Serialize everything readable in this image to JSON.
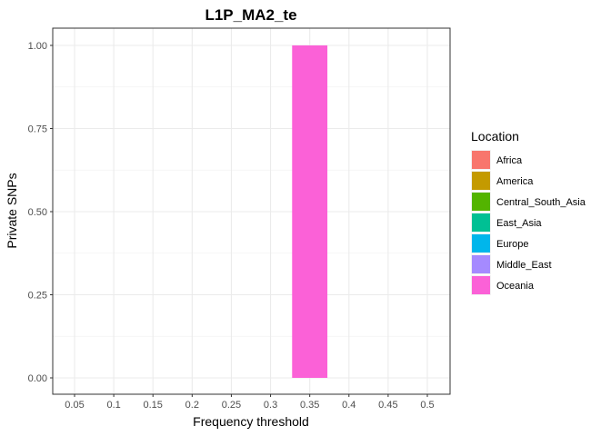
{
  "chart_data": {
    "type": "bar",
    "title": "L1P_MA2_te",
    "xlabel": "Frequency threshold",
    "ylabel": "Private SNPs",
    "categories": [
      "0.05",
      "0.1",
      "0.15",
      "0.2",
      "0.25",
      "0.3",
      "0.35",
      "0.4",
      "0.45",
      "0.5"
    ],
    "ylim": [
      0,
      1
    ],
    "yticks": [
      "0.00",
      "0.25",
      "0.50",
      "0.75",
      "1.00"
    ],
    "grid": true,
    "stacked": true,
    "legend": {
      "title": "Location",
      "placement": "right"
    },
    "series": [
      {
        "name": "Africa",
        "color": "#F8766D",
        "values": [
          0,
          0,
          0,
          0,
          0,
          0,
          0,
          0,
          0,
          0
        ]
      },
      {
        "name": "America",
        "color": "#C49A00",
        "values": [
          0,
          0,
          0,
          0,
          0,
          0,
          0,
          0,
          0,
          0
        ]
      },
      {
        "name": "Central_South_Asia",
        "color": "#53B400",
        "values": [
          0,
          0,
          0,
          0,
          0,
          0,
          0,
          0,
          0,
          0
        ]
      },
      {
        "name": "East_Asia",
        "color": "#00C094",
        "values": [
          0,
          0,
          0,
          0,
          0,
          0,
          0,
          0,
          0,
          0
        ]
      },
      {
        "name": "Europe",
        "color": "#00B6EB",
        "values": [
          0,
          0,
          0,
          0,
          0,
          0,
          0,
          0,
          0,
          0
        ]
      },
      {
        "name": "Middle_East",
        "color": "#A58AFF",
        "values": [
          0,
          0,
          0,
          0,
          0,
          0,
          0,
          0,
          0,
          0
        ]
      },
      {
        "name": "Oceania",
        "color": "#FB61D7",
        "values": [
          0,
          0,
          0,
          0,
          0,
          0,
          1,
          0,
          0,
          0
        ]
      }
    ]
  }
}
